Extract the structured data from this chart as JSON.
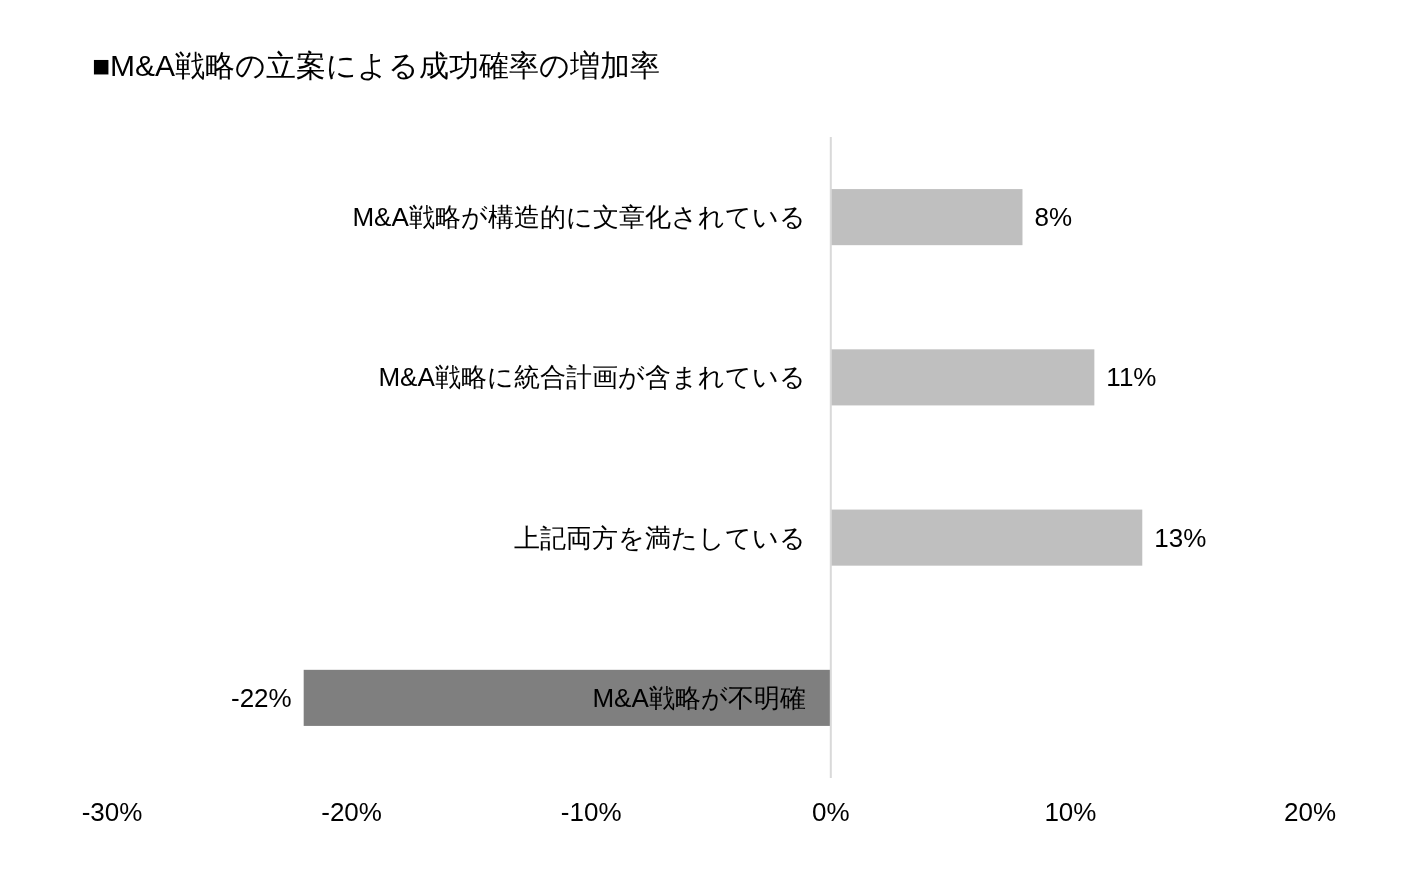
{
  "chart_data": {
    "type": "bar",
    "orientation": "horizontal",
    "title": "■M&A戦略の立案による成功確率の増加率",
    "categories": [
      "M&A戦略が構造的に文章化されている",
      "M&A戦略に統合計画が含まれている",
      "上記両方を満たしている",
      "M&A戦略が不明確"
    ],
    "values": [
      8,
      11,
      13,
      -22
    ],
    "colors": [
      "#bfbfbf",
      "#bfbfbf",
      "#bfbfbf",
      "#7f7f7f"
    ],
    "value_labels": [
      "8%",
      "11%",
      "13%",
      "-22%"
    ],
    "xlim": [
      -30,
      20
    ],
    "xticks": [
      {
        "value": -30,
        "label": "-30%"
      },
      {
        "value": -20,
        "label": "-20%"
      },
      {
        "value": -10,
        "label": "-10%"
      },
      {
        "value": 0,
        "label": "0%"
      },
      {
        "value": 10,
        "label": "10%"
      },
      {
        "value": 20,
        "label": "20%"
      }
    ]
  }
}
